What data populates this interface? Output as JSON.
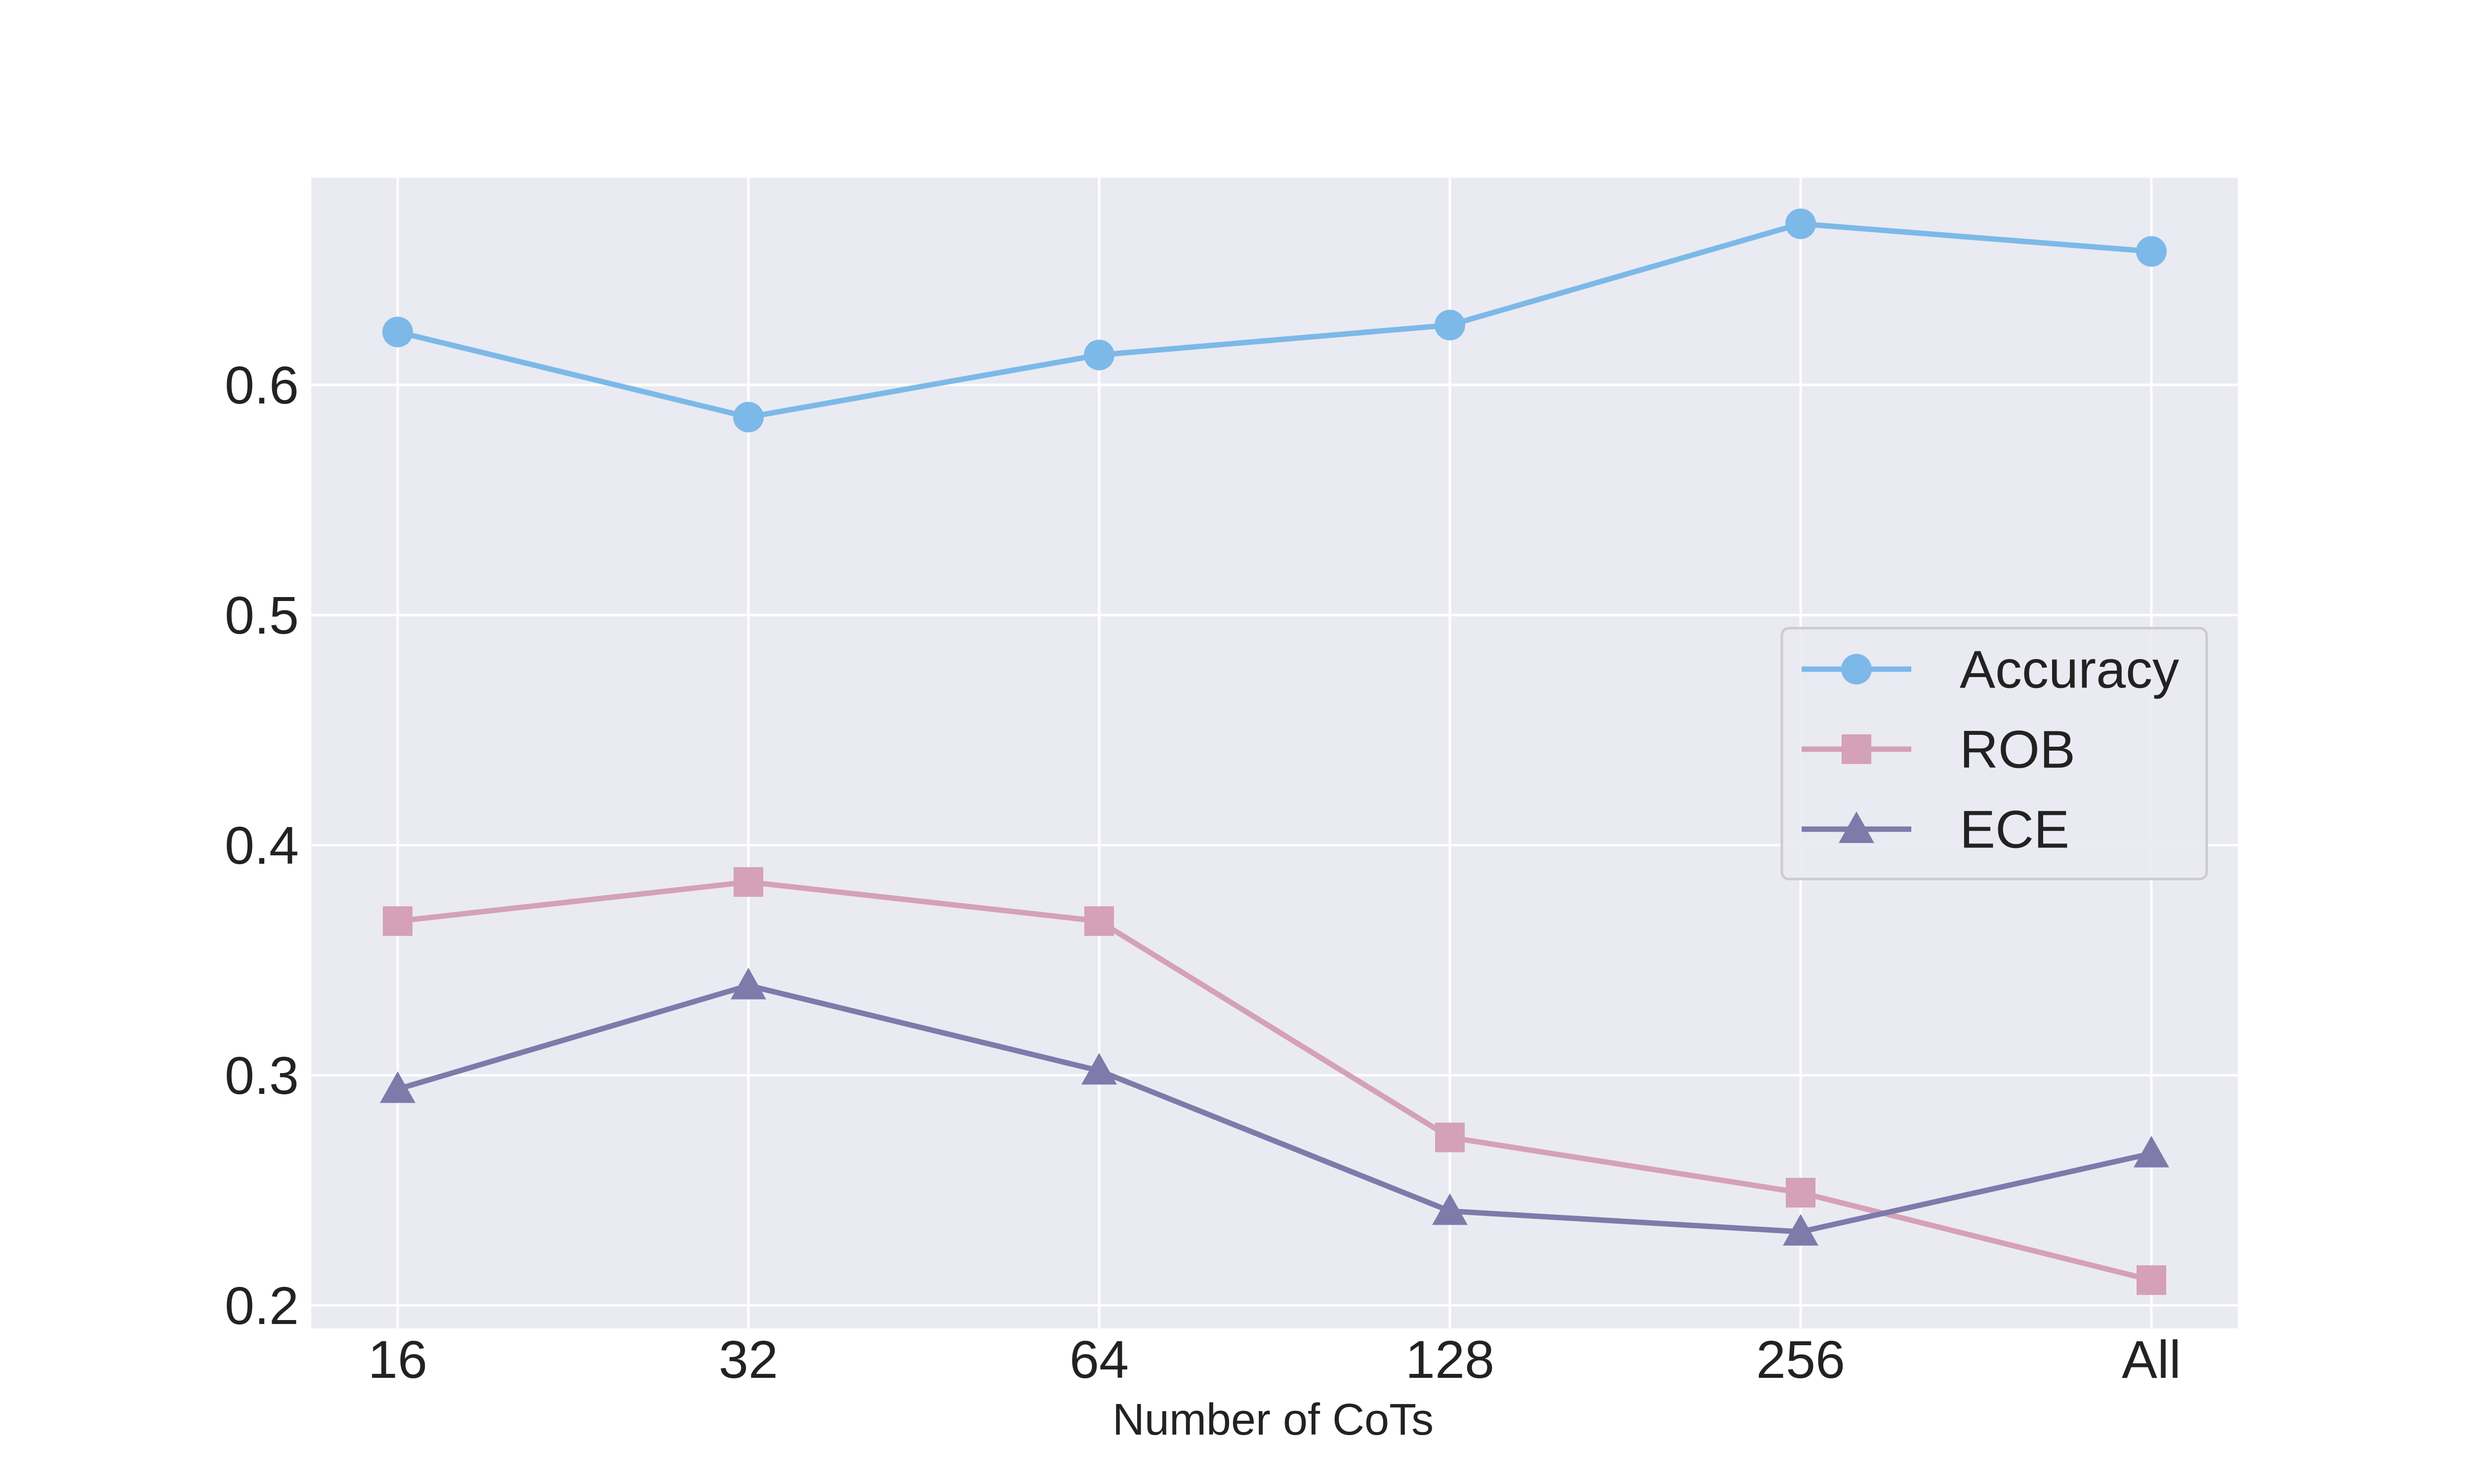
{
  "chart_data": {
    "type": "line",
    "title": "",
    "xlabel": "Number of CoTs",
    "ylabel": "",
    "categories": [
      "16",
      "32",
      "64",
      "128",
      "256",
      "All"
    ],
    "ylim": [
      0.19,
      0.69
    ],
    "yticks": [
      0.2,
      0.3,
      0.4,
      0.5,
      0.6
    ],
    "ytick_labels": [
      "0.2",
      "0.3",
      "0.4",
      "0.5",
      "0.6"
    ],
    "grid": true,
    "legend_position": "center-right",
    "background": "#EAEAF2",
    "series": [
      {
        "name": "Accuracy",
        "marker": "circle",
        "color": "#7CB9E8",
        "values": [
          0.623,
          0.586,
          0.613,
          0.626,
          0.67,
          0.658
        ]
      },
      {
        "name": "ROB",
        "marker": "square",
        "color": "#D4A1B8",
        "values": [
          0.367,
          0.384,
          0.367,
          0.273,
          0.249,
          0.211
        ]
      },
      {
        "name": "ECE",
        "marker": "triangle",
        "color": "#7E7AAA",
        "values": [
          0.294,
          0.339,
          0.302,
          0.241,
          0.232,
          0.266
        ]
      }
    ]
  }
}
